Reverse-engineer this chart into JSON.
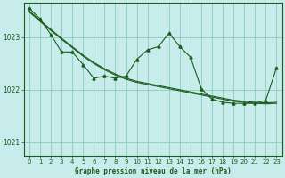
{
  "title": "Graphe pression niveau de la mer (hPa)",
  "bg_color": "#c8ecec",
  "grid_color": "#88ccbb",
  "line_color": "#1a5c1a",
  "xlim": [
    -0.5,
    23.5
  ],
  "ylim": [
    1020.75,
    1023.65
  ],
  "yticks": [
    1021,
    1022,
    1023
  ],
  "xticks": [
    0,
    1,
    2,
    3,
    4,
    5,
    6,
    7,
    8,
    9,
    10,
    11,
    12,
    13,
    14,
    15,
    16,
    17,
    18,
    19,
    20,
    21,
    22,
    23
  ],
  "series_jagged": [
    1023.55,
    1023.35,
    1023.05,
    1022.72,
    1022.72,
    1022.48,
    1022.22,
    1022.26,
    1022.22,
    1022.26,
    1022.58,
    1022.76,
    1022.82,
    1023.08,
    1022.82,
    1022.62,
    1022.02,
    1021.82,
    1021.76,
    1021.74,
    1021.74,
    1021.74,
    1021.8,
    1022.42
  ],
  "series_smooth1": [
    1023.5,
    1023.32,
    1023.15,
    1022.98,
    1022.82,
    1022.66,
    1022.52,
    1022.4,
    1022.3,
    1022.22,
    1022.16,
    1022.12,
    1022.08,
    1022.04,
    1022.0,
    1021.96,
    1021.92,
    1021.88,
    1021.84,
    1021.8,
    1021.78,
    1021.76,
    1021.75,
    1021.76
  ],
  "series_smooth2": [
    1023.48,
    1023.3,
    1023.13,
    1022.96,
    1022.8,
    1022.64,
    1022.5,
    1022.38,
    1022.28,
    1022.2,
    1022.14,
    1022.1,
    1022.06,
    1022.02,
    1021.98,
    1021.94,
    1021.9,
    1021.86,
    1021.82,
    1021.78,
    1021.76,
    1021.74,
    1021.73,
    1021.74
  ]
}
